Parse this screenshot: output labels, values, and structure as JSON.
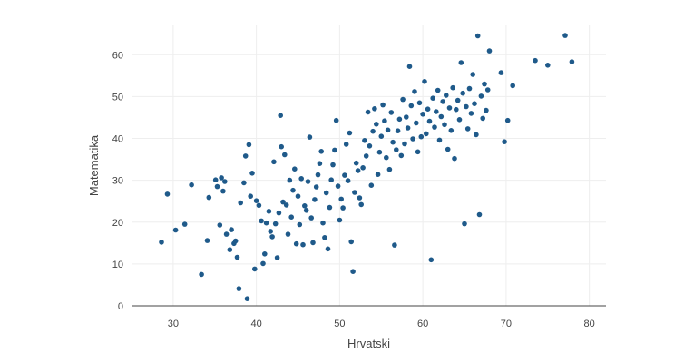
{
  "chart_data": {
    "type": "scatter",
    "title": "",
    "xlabel": "Hrvatski",
    "ylabel": "Matematika",
    "xlim": [
      25,
      82
    ],
    "ylim": [
      0,
      67
    ],
    "x_ticks": [
      30,
      40,
      50,
      60,
      70,
      80
    ],
    "y_ticks": [
      0,
      10,
      20,
      30,
      40,
      50,
      60
    ],
    "grid": true,
    "legend": "none",
    "marker_color": "#1f5a8a",
    "series": [
      {
        "points": [
          [
            28.6,
            15.2
          ],
          [
            29.3,
            26.7
          ],
          [
            30.3,
            18.1
          ],
          [
            31.4,
            19.5
          ],
          [
            32.2,
            28.9
          ],
          [
            33.4,
            7.5
          ],
          [
            34.1,
            15.6
          ],
          [
            34.3,
            25.9
          ],
          [
            35.1,
            30.1
          ],
          [
            35.3,
            28.5
          ],
          [
            35.6,
            19.3
          ],
          [
            35.8,
            30.6
          ],
          [
            36.0,
            27.4
          ],
          [
            36.2,
            29.7
          ],
          [
            36.4,
            17.1
          ],
          [
            36.8,
            13.4
          ],
          [
            37.0,
            18.2
          ],
          [
            37.3,
            14.9
          ],
          [
            37.5,
            15.5
          ],
          [
            37.7,
            11.6
          ],
          [
            37.9,
            4.1
          ],
          [
            38.1,
            24.6
          ],
          [
            38.5,
            29.4
          ],
          [
            38.7,
            35.8
          ],
          [
            38.9,
            1.7
          ],
          [
            39.1,
            38.5
          ],
          [
            39.3,
            26.2
          ],
          [
            39.5,
            31.7
          ],
          [
            39.8,
            8.8
          ],
          [
            40.0,
            25.1
          ],
          [
            40.3,
            24.0
          ],
          [
            40.6,
            20.3
          ],
          [
            40.8,
            10.1
          ],
          [
            41.0,
            12.4
          ],
          [
            41.2,
            19.8
          ],
          [
            41.5,
            22.6
          ],
          [
            41.7,
            17.8
          ],
          [
            41.9,
            16.5
          ],
          [
            42.1,
            34.4
          ],
          [
            42.3,
            19.6
          ],
          [
            42.5,
            11.5
          ],
          [
            42.7,
            22.2
          ],
          [
            42.9,
            45.5
          ],
          [
            43.0,
            38.0
          ],
          [
            43.2,
            24.8
          ],
          [
            43.4,
            36.1
          ],
          [
            43.6,
            24.1
          ],
          [
            43.8,
            17.1
          ],
          [
            44.0,
            30.0
          ],
          [
            44.2,
            21.2
          ],
          [
            44.4,
            27.6
          ],
          [
            44.6,
            32.7
          ],
          [
            44.8,
            14.8
          ],
          [
            45.0,
            26.2
          ],
          [
            45.2,
            19.4
          ],
          [
            45.4,
            30.4
          ],
          [
            45.6,
            14.6
          ],
          [
            45.8,
            23.9
          ],
          [
            46.0,
            22.8
          ],
          [
            46.2,
            29.7
          ],
          [
            46.4,
            40.3
          ],
          [
            46.6,
            21.0
          ],
          [
            46.8,
            15.1
          ],
          [
            47.0,
            25.4
          ],
          [
            47.2,
            28.4
          ],
          [
            47.4,
            31.3
          ],
          [
            47.6,
            34.0
          ],
          [
            47.8,
            36.9
          ],
          [
            48.0,
            19.8
          ],
          [
            48.2,
            16.3
          ],
          [
            48.4,
            27.0
          ],
          [
            48.6,
            13.6
          ],
          [
            48.8,
            23.5
          ],
          [
            49.0,
            30.1
          ],
          [
            49.2,
            33.7
          ],
          [
            49.4,
            37.2
          ],
          [
            49.6,
            44.3
          ],
          [
            49.8,
            28.6
          ],
          [
            50.0,
            20.5
          ],
          [
            50.2,
            25.5
          ],
          [
            50.4,
            23.4
          ],
          [
            50.6,
            31.2
          ],
          [
            50.8,
            38.6
          ],
          [
            51.0,
            29.9
          ],
          [
            51.2,
            41.3
          ],
          [
            51.4,
            15.3
          ],
          [
            51.6,
            8.2
          ],
          [
            51.8,
            27.1
          ],
          [
            52.0,
            34.1
          ],
          [
            52.2,
            32.3
          ],
          [
            52.4,
            25.8
          ],
          [
            52.6,
            24.2
          ],
          [
            52.8,
            33.0
          ],
          [
            53.0,
            39.5
          ],
          [
            53.2,
            35.8
          ],
          [
            53.4,
            46.3
          ],
          [
            53.6,
            38.2
          ],
          [
            53.8,
            28.8
          ],
          [
            54.0,
            41.7
          ],
          [
            54.2,
            47.1
          ],
          [
            54.4,
            43.4
          ],
          [
            54.6,
            31.4
          ],
          [
            54.8,
            36.7
          ],
          [
            55.0,
            40.5
          ],
          [
            55.2,
            48.0
          ],
          [
            55.4,
            44.2
          ],
          [
            55.6,
            35.4
          ],
          [
            55.8,
            42.0
          ],
          [
            56.0,
            32.6
          ],
          [
            56.2,
            46.2
          ],
          [
            56.4,
            39.1
          ],
          [
            56.6,
            14.5
          ],
          [
            56.8,
            37.3
          ],
          [
            57.0,
            41.8
          ],
          [
            57.2,
            44.6
          ],
          [
            57.4,
            35.9
          ],
          [
            57.6,
            49.3
          ],
          [
            57.8,
            38.7
          ],
          [
            58.0,
            45.1
          ],
          [
            58.2,
            42.5
          ],
          [
            58.4,
            57.2
          ],
          [
            58.6,
            47.8
          ],
          [
            58.8,
            39.9
          ],
          [
            59.0,
            51.2
          ],
          [
            59.2,
            43.7
          ],
          [
            59.4,
            36.8
          ],
          [
            59.6,
            48.5
          ],
          [
            59.8,
            40.4
          ],
          [
            60.0,
            45.8
          ],
          [
            60.2,
            53.6
          ],
          [
            60.4,
            41.1
          ],
          [
            60.6,
            47.0
          ],
          [
            60.8,
            44.1
          ],
          [
            61.0,
            11.0
          ],
          [
            61.2,
            49.6
          ],
          [
            61.4,
            42.7
          ],
          [
            61.6,
            46.4
          ],
          [
            61.8,
            51.5
          ],
          [
            62.0,
            39.6
          ],
          [
            62.2,
            45.2
          ],
          [
            62.4,
            48.8
          ],
          [
            62.6,
            43.3
          ],
          [
            62.8,
            50.3
          ],
          [
            63.0,
            37.4
          ],
          [
            63.2,
            47.3
          ],
          [
            63.4,
            41.9
          ],
          [
            63.6,
            52.1
          ],
          [
            63.8,
            35.2
          ],
          [
            64.0,
            46.9
          ],
          [
            64.2,
            49.1
          ],
          [
            64.4,
            44.5
          ],
          [
            64.6,
            58.1
          ],
          [
            64.8,
            50.8
          ],
          [
            65.0,
            19.6
          ],
          [
            65.2,
            47.6
          ],
          [
            65.4,
            42.3
          ],
          [
            65.6,
            51.9
          ],
          [
            65.8,
            46.0
          ],
          [
            66.0,
            55.3
          ],
          [
            66.2,
            48.3
          ],
          [
            66.4,
            40.9
          ],
          [
            66.6,
            64.5
          ],
          [
            66.8,
            21.8
          ],
          [
            67.0,
            50.1
          ],
          [
            67.2,
            44.8
          ],
          [
            67.4,
            53.0
          ],
          [
            67.6,
            46.7
          ],
          [
            67.8,
            51.6
          ],
          [
            68.0,
            60.9
          ],
          [
            69.4,
            55.7
          ],
          [
            69.8,
            39.2
          ],
          [
            70.2,
            44.3
          ],
          [
            70.8,
            52.6
          ],
          [
            73.5,
            58.6
          ],
          [
            75.0,
            57.5
          ],
          [
            77.1,
            64.6
          ],
          [
            77.9,
            58.3
          ]
        ]
      }
    ]
  }
}
